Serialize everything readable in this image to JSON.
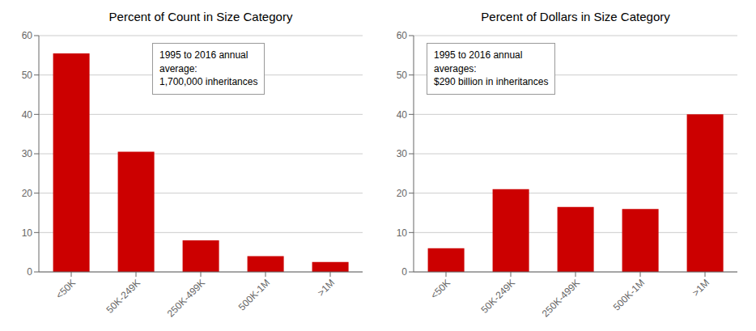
{
  "chart_data": [
    {
      "type": "bar",
      "title": "Percent of Count in Size Category",
      "categories": [
        "<50K",
        "50K-249K",
        "250K-499K",
        "500K-1M",
        ">1M"
      ],
      "values": [
        55.5,
        30.5,
        8.0,
        4.0,
        2.5
      ],
      "color": "#cc0000",
      "ylim": [
        0,
        60
      ],
      "yticks": [
        0,
        10,
        20,
        30,
        40,
        50,
        60
      ],
      "grid": true,
      "annotation": "1995 to 2016 annual\naverage:\n1,700,000 inheritances"
    },
    {
      "type": "bar",
      "title": "Percent of Dollars in Size Category",
      "categories": [
        "<50K",
        "50K-249K",
        "250K-499K",
        "500K-1M",
        ">1M"
      ],
      "values": [
        6.0,
        21.0,
        16.5,
        16.0,
        40.0
      ],
      "color": "#cc0000",
      "ylim": [
        0,
        60
      ],
      "yticks": [
        0,
        10,
        20,
        30,
        40,
        50,
        60
      ],
      "grid": true,
      "annotation": "1995 to 2016 annual\naverages:\n$290 billion in inheritances"
    }
  ]
}
